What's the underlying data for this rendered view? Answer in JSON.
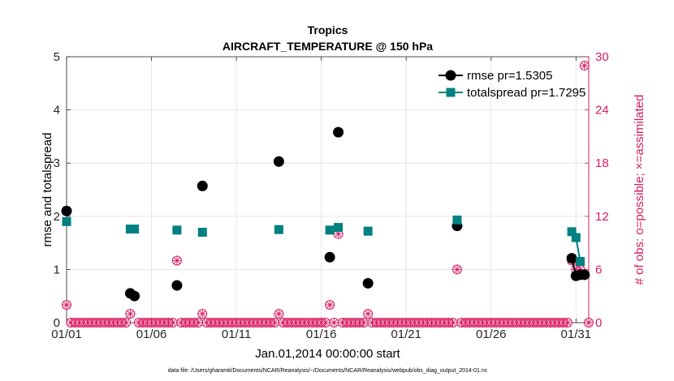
{
  "chart_data": {
    "type": "scatter",
    "title": "Tropics",
    "subtitle": "AIRCRAFT_TEMPERATURE @ 150 hPa",
    "xlabel": "Jan.01,2014 00:00:00 start",
    "ylabel": "rmse and totalspread",
    "y2label": "# of obs: o=possible; ×=assimilated",
    "footnote": "data file: /Users/gharamti/Documents/NCAR/Reanalysis/~/Documents/NCAR/Reanalysis/webpub/obs_diag_output_2014-01.nc",
    "xlim": [
      1,
      31.75
    ],
    "ylim": [
      0,
      5
    ],
    "y2lim": [
      0,
      30
    ],
    "grid": true,
    "legend_position": "top-right",
    "x_ticks": [
      {
        "value": 1,
        "label": "01/01"
      },
      {
        "value": 6,
        "label": "01/06"
      },
      {
        "value": 11,
        "label": "01/11"
      },
      {
        "value": 16,
        "label": "01/16"
      },
      {
        "value": 21,
        "label": "01/21"
      },
      {
        "value": 26,
        "label": "01/26"
      },
      {
        "value": 31,
        "label": "01/31"
      }
    ],
    "y_ticks": [
      "0",
      "1",
      "2",
      "3",
      "4",
      "5"
    ],
    "y2_ticks": [
      "0",
      "6",
      "12",
      "18",
      "24",
      "30"
    ],
    "colors": {
      "rmse": "#000000",
      "totalspread": "#008080",
      "obs": "#d81b60"
    },
    "series": [
      {
        "name": "rmse pr=1.5305",
        "axis": "left",
        "points": [
          [
            1,
            2.1
          ],
          [
            4.75,
            0.55
          ],
          [
            5,
            0.5
          ],
          [
            7.5,
            0.7
          ],
          [
            9,
            2.57
          ],
          [
            13.5,
            3.03
          ],
          [
            16.5,
            1.23
          ],
          [
            17,
            3.58
          ],
          [
            18.75,
            0.74
          ],
          [
            24,
            1.82
          ],
          [
            30.75,
            1.21
          ],
          [
            31,
            0.88
          ],
          [
            31.25,
            0.9
          ],
          [
            31.5,
            0.9
          ]
        ]
      },
      {
        "name": "totalspread pr=1.7295",
        "axis": "left",
        "points": [
          [
            1,
            1.9
          ],
          [
            4.75,
            1.76
          ],
          [
            5,
            1.76
          ],
          [
            7.5,
            1.74
          ],
          [
            9,
            1.7
          ],
          [
            13.5,
            1.75
          ],
          [
            16.5,
            1.74
          ],
          [
            17,
            1.79
          ],
          [
            18.75,
            1.72
          ],
          [
            24,
            1.93
          ],
          [
            30.75,
            1.71
          ],
          [
            31,
            1.6
          ],
          [
            31.25,
            1.15
          ]
        ]
      }
    ],
    "obs_possible_nonzero": [
      [
        1,
        2
      ],
      [
        4.75,
        1
      ],
      [
        5,
        3
      ],
      [
        7.5,
        7
      ],
      [
        9,
        1
      ],
      [
        13.5,
        1
      ],
      [
        16.5,
        2
      ],
      [
        17,
        10
      ],
      [
        18.75,
        1
      ],
      [
        24,
        6
      ],
      [
        30.75,
        7
      ],
      [
        31,
        6
      ],
      [
        31.25,
        6
      ],
      [
        31.5,
        29
      ]
    ],
    "obs_assimilated_nonzero": [
      [
        1,
        2
      ],
      [
        4.75,
        1
      ],
      [
        5,
        3
      ],
      [
        7.5,
        7
      ],
      [
        9,
        1
      ],
      [
        13.5,
        1
      ],
      [
        16.5,
        2
      ],
      [
        17,
        10
      ],
      [
        18.75,
        1
      ],
      [
        24,
        6
      ],
      [
        30.75,
        7
      ],
      [
        31,
        6
      ],
      [
        31.25,
        6
      ],
      [
        31.5,
        29
      ]
    ],
    "obs_interval_days": 0.25
  }
}
